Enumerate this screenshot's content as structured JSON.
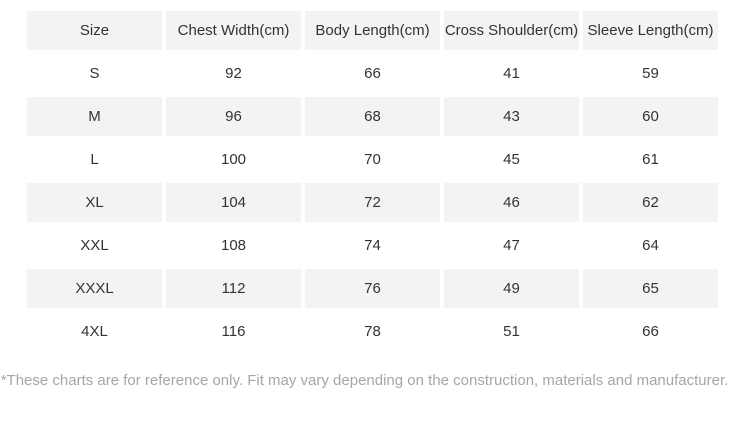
{
  "chart_data": {
    "type": "table",
    "title": "",
    "columns": [
      "Size",
      "Chest Width(cm)",
      "Body Length(cm)",
      "Cross Shoulder(cm)",
      "Sleeve Length(cm)"
    ],
    "rows": [
      [
        "S",
        "92",
        "66",
        "41",
        "59"
      ],
      [
        "M",
        "96",
        "68",
        "43",
        "60"
      ],
      [
        "L",
        "100",
        "70",
        "45",
        "61"
      ],
      [
        "XL",
        "104",
        "72",
        "46",
        "62"
      ],
      [
        "XXL",
        "108",
        "74",
        "47",
        "64"
      ],
      [
        "XXXL",
        "112",
        "76",
        "49",
        "65"
      ],
      [
        "4XL",
        "116",
        "78",
        "51",
        "66"
      ]
    ],
    "layout_hints": {
      "striped_rows": "header and even data rows shaded",
      "cell_alignment": "center"
    }
  },
  "footnote": "*These charts are for reference only. Fit may vary depending on the construction, materials and manufacturer.",
  "colors": {
    "background": "#ffffff",
    "stripe": "#f3f3f3",
    "text": "#333333",
    "footnote_text": "#a6a6a6"
  }
}
